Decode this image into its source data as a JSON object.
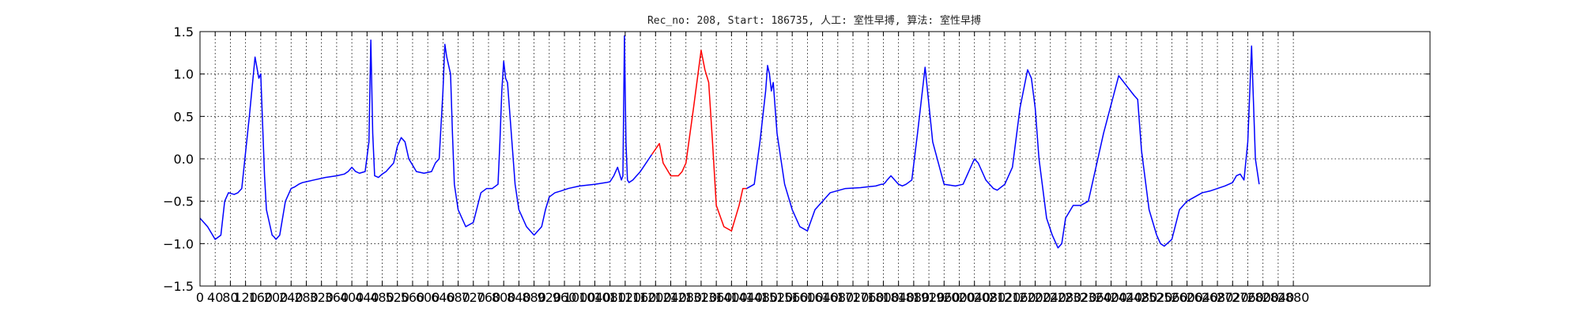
{
  "chart_data": {
    "type": "line",
    "title": "Rec_no: 208, Start: 186735, 人工: 室性早搏, 算法: 室性早搏",
    "xlabel": "",
    "ylabel": "",
    "xlim": [
      0,
      3240
    ],
    "ylim": [
      -1.5,
      1.5
    ],
    "grid": true,
    "yticks": [
      -1.5,
      -1.0,
      -0.5,
      0.0,
      0.5,
      1.0,
      1.5
    ],
    "ytick_labels": [
      "−1.5",
      "−1.0",
      "−0.5",
      "0.0",
      "0.5",
      "1.0",
      "1.5"
    ],
    "xticks": [
      0,
      40,
      80,
      120,
      160,
      200,
      240,
      280,
      320,
      360,
      400,
      440,
      480,
      520,
      560,
      600,
      640,
      680,
      720,
      760,
      800,
      840,
      880,
      920,
      960,
      1000,
      1040,
      1080,
      1120,
      1160,
      1200,
      1240,
      1280,
      1320,
      1360,
      1400,
      1440,
      1480,
      1520,
      1560,
      1600,
      1640,
      1680,
      1720,
      1760,
      1800,
      1840,
      1880,
      1920,
      1960,
      2000,
      2040,
      2080,
      2120,
      2160,
      2200,
      2240,
      2280,
      2320,
      2360,
      2400,
      2440,
      2480,
      2520,
      2560,
      2600,
      2640,
      2680,
      2720,
      2760,
      2800,
      2840,
      2880
    ],
    "xtick_labels": [
      "0",
      "40",
      "80",
      "120",
      "160",
      "200",
      "240",
      "280",
      "320",
      "360",
      "400",
      "440",
      "480",
      "520",
      "560",
      "600",
      "640",
      "680",
      "720",
      "760",
      "800",
      "840",
      "880",
      "920",
      "960",
      "1000",
      "1040",
      "1080",
      "1120",
      "1160",
      "1200",
      "1240",
      "1280",
      "1320",
      "1360",
      "1400",
      "1440",
      "1480",
      "1520",
      "1560",
      "1600",
      "1640",
      "1680",
      "1720",
      "1760",
      "1800",
      "1840",
      "1880",
      "1920",
      "1960",
      "2000",
      "2040",
      "2080",
      "2120",
      "2160",
      "2200",
      "2240",
      "2280",
      "2320",
      "2360",
      "2400",
      "2440",
      "2480",
      "2520",
      "2560",
      "2600",
      "2640",
      "2680",
      "2720",
      "2760",
      "2800",
      "2840",
      "2880"
    ],
    "series": [
      {
        "color": "#0000ff",
        "x": [
          0,
          20,
          40,
          55,
          65,
          75,
          90,
          100,
          110,
          130,
          145,
          155,
          160,
          165,
          170,
          175,
          180,
          185,
          190,
          195,
          200,
          210,
          225,
          240,
          250,
          260,
          270,
          280,
          300,
          330,
          360,
          380,
          390,
          400,
          410,
          420,
          435,
          445,
          450,
          455,
          460,
          470,
          480,
          490,
          510,
          520,
          530,
          540,
          550,
          570,
          590,
          610,
          620,
          630,
          640,
          645,
          650,
          655,
          660,
          665,
          670,
          680,
          690,
          700,
          720,
          740,
          755,
          770,
          785,
          790,
          795,
          800,
          805,
          810,
          820,
          830,
          840,
          860,
          880,
          900,
          910,
          920,
          935,
          950,
          970,
          1000,
          1040,
          1070,
          1080,
          1090,
          1100,
          1110,
          1114,
          1118,
          1122,
          1126,
          1130,
          1140,
          1160,
          1190
        ],
        "y": [
          -0.7,
          -0.8,
          -0.95,
          -0.9,
          -0.5,
          -0.4,
          -0.42,
          -0.4,
          -0.35,
          0.5,
          1.2,
          0.95,
          1.0,
          0.4,
          -0.2,
          -0.6,
          -0.7,
          -0.8,
          -0.9,
          -0.92,
          -0.95,
          -0.9,
          -0.5,
          -0.35,
          -0.33,
          -0.3,
          -0.28,
          -0.27,
          -0.25,
          -0.22,
          -0.2,
          -0.18,
          -0.15,
          -0.1,
          -0.15,
          -0.17,
          -0.15,
          0.2,
          1.4,
          0.3,
          -0.2,
          -0.22,
          -0.18,
          -0.15,
          -0.05,
          0.15,
          0.25,
          0.2,
          0.0,
          -0.15,
          -0.17,
          -0.15,
          -0.05,
          0.0,
          0.8,
          1.35,
          1.2,
          1.1,
          1.0,
          0.3,
          -0.3,
          -0.6,
          -0.7,
          -0.8,
          -0.75,
          -0.4,
          -0.35,
          -0.35,
          -0.3,
          0.2,
          0.8,
          1.15,
          0.95,
          0.9,
          0.3,
          -0.3,
          -0.6,
          -0.8,
          -0.9,
          -0.8,
          -0.6,
          -0.45,
          -0.4,
          -0.38,
          -0.35,
          -0.32,
          -0.3,
          -0.28,
          -0.27,
          -0.2,
          -0.1,
          -0.25,
          -0.2,
          1.45,
          0.2,
          -0.25,
          -0.28,
          -0.25,
          -0.15,
          0.05
        ]
      },
      {
        "color": "#ff0000",
        "x": [
          1190,
          1210,
          1220,
          1240,
          1260,
          1270,
          1280,
          1300,
          1320,
          1330,
          1340,
          1350,
          1360,
          1380,
          1400,
          1420,
          1430,
          1440
        ],
        "y": [
          0.05,
          0.18,
          -0.05,
          -0.2,
          -0.2,
          -0.15,
          -0.05,
          0.6,
          1.28,
          1.05,
          0.9,
          0.2,
          -0.55,
          -0.8,
          -0.85,
          -0.55,
          -0.35,
          -0.35
        ]
      },
      {
        "color": "#0000ff",
        "x": [
          1440,
          1460,
          1475,
          1490,
          1495,
          1500,
          1505,
          1510,
          1520,
          1540,
          1560,
          1580,
          1600,
          1620,
          1660,
          1700,
          1740,
          1760,
          1780,
          1795,
          1800,
          1805,
          1810,
          1820,
          1840,
          1850,
          1860,
          1875,
          1890,
          1910,
          1930,
          1960,
          1990,
          2010,
          2020,
          2030,
          2040,
          2050,
          2070,
          2090,
          2100,
          2120,
          2140,
          2160,
          2180,
          2190,
          2200,
          2210,
          2230,
          2245,
          2260,
          2270,
          2280,
          2300,
          2320,
          2340,
          2380,
          2420,
          2460,
          2470,
          2480,
          2500,
          2520,
          2530,
          2540,
          2560,
          2580,
          2600,
          2620,
          2640,
          2660,
          2680,
          2700,
          2710,
          2720,
          2730,
          2740,
          2750,
          2760,
          2770,
          2780,
          2790
        ],
        "y": [
          -0.35,
          -0.3,
          0.2,
          0.8,
          1.1,
          1.0,
          0.8,
          0.9,
          0.3,
          -0.3,
          -0.6,
          -0.8,
          -0.85,
          -0.6,
          -0.4,
          -0.35,
          -0.34,
          -0.33,
          -0.32,
          -0.3,
          -0.3,
          -0.28,
          -0.25,
          -0.2,
          -0.3,
          -0.32,
          -0.3,
          -0.25,
          0.3,
          1.08,
          0.2,
          -0.3,
          -0.32,
          -0.3,
          -0.2,
          -0.1,
          0.0,
          -0.05,
          -0.25,
          -0.35,
          -0.37,
          -0.3,
          -0.1,
          0.6,
          1.05,
          0.95,
          0.6,
          0.0,
          -0.7,
          -0.9,
          -1.05,
          -1.0,
          -0.7,
          -0.55,
          -0.55,
          -0.5,
          0.3,
          0.98,
          0.75,
          0.7,
          0.1,
          -0.6,
          -0.9,
          -1.0,
          -1.03,
          -0.95,
          -0.6,
          -0.5,
          -0.45,
          -0.4,
          -0.38,
          -0.35,
          -0.32,
          -0.3,
          -0.28,
          -0.2,
          -0.18,
          -0.25,
          0.2,
          1.33,
          0.0,
          -0.3
        ]
      }
    ]
  }
}
